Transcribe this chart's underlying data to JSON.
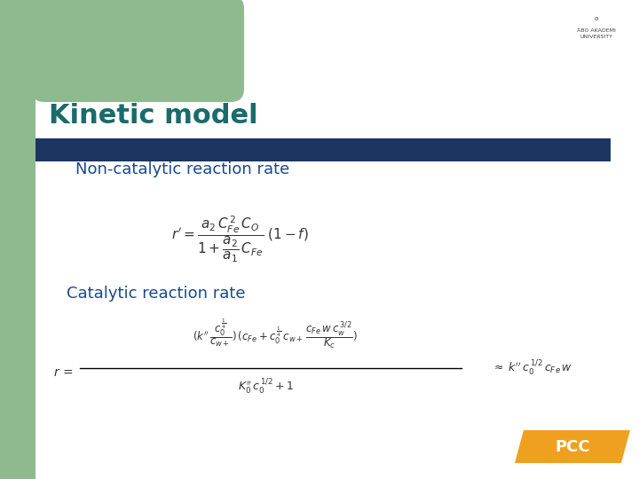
{
  "title": "Kinetic model",
  "title_color": "#1a6b6b",
  "title_fontsize": 22,
  "bg_color": "#ffffff",
  "green_rect_color": "#8fba8f",
  "blue_bar_color": "#1a3560",
  "section1_label": "Non-catalytic reaction rate",
  "section2_label": "Catalytic reaction rate",
  "section_color": "#1a4a8a",
  "section_fontsize": 13,
  "formula_color": "#333333",
  "pcc_bg": "#f0a020",
  "pcc_text": "PCC",
  "figsize": [
    7.2,
    5.4
  ],
  "dpi": 100,
  "logo_text": "ÅBO AKADEMI\nUNIVERSITY"
}
